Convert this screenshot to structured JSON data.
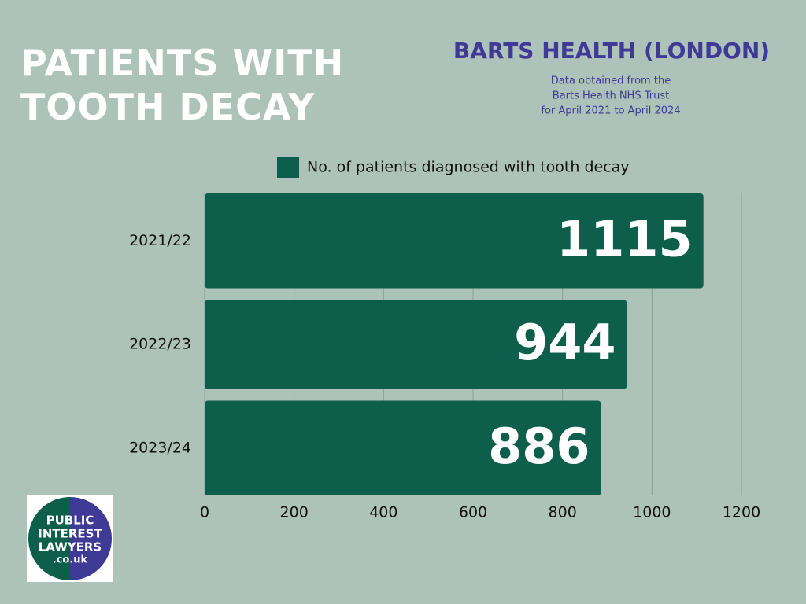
{
  "chart_data": {
    "type": "bar",
    "orientation": "horizontal",
    "title": "PATIENTS WITH TOOTH DECAY",
    "organization": "BARTS HEALTH (LONDON)",
    "subtitle": [
      "Data obtained from the",
      "Barts Health NHS Trust",
      "for April 2021 to April 2024"
    ],
    "categories": [
      "2021/22",
      "2022/23",
      "2023/24"
    ],
    "series": [
      {
        "name": "No. of patients diagnosed with tooth decay",
        "color": "#0d5e4b",
        "values": [
          1115,
          944,
          886
        ]
      }
    ],
    "xlim": [
      0,
      1200
    ],
    "xticks": [
      0,
      200,
      400,
      600,
      800,
      1000,
      1200
    ],
    "grid": true,
    "legend": "top"
  },
  "logo": {
    "lines": [
      "PUBLIC",
      "INTEREST",
      "LAWYERS",
      ".co.uk"
    ]
  }
}
